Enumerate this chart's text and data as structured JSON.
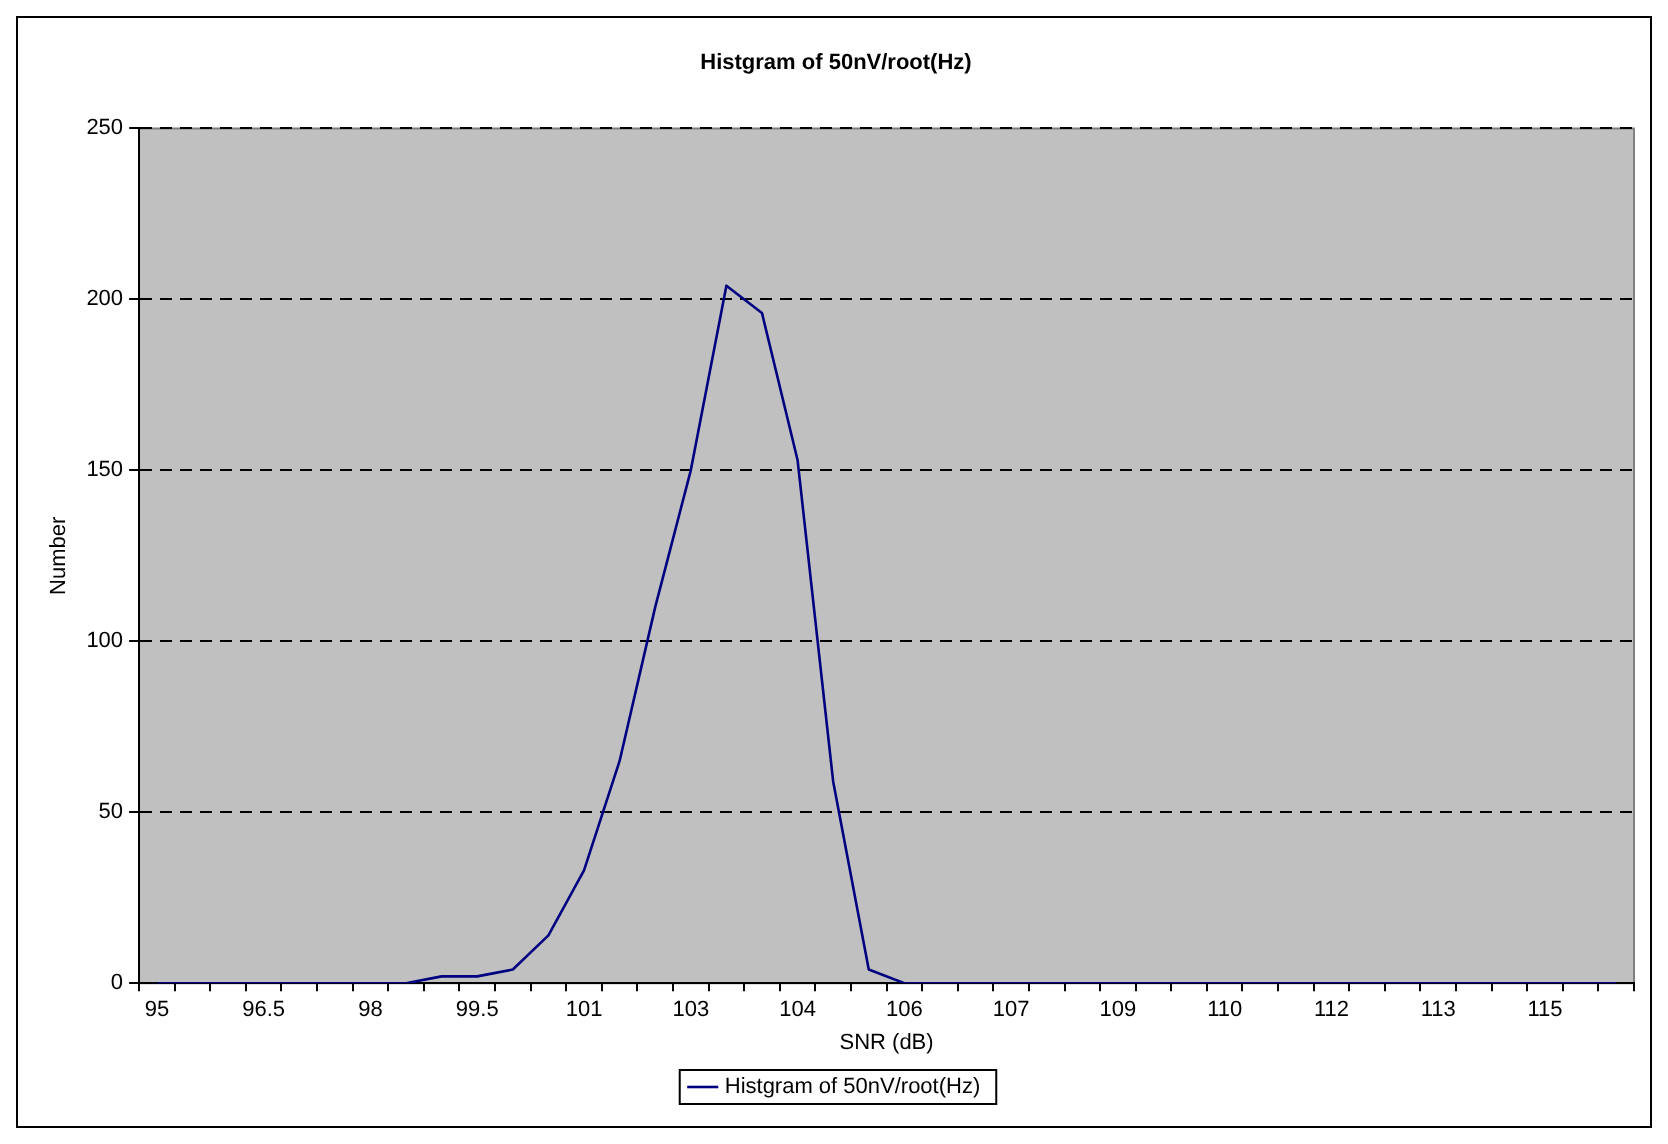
{
  "chart_data": {
    "type": "line",
    "title": "Histgram of 50nV/root(Hz)",
    "xlabel": "SNR (dB)",
    "ylabel": "Number",
    "categories": [
      "95",
      null,
      null,
      "96.5",
      null,
      null,
      "98",
      null,
      null,
      "99.5",
      null,
      null,
      "101",
      null,
      null,
      "103",
      null,
      null,
      "104",
      null,
      null,
      "106",
      null,
      null,
      "107",
      null,
      null,
      "109",
      null,
      null,
      "110",
      null,
      null,
      "112",
      null,
      null,
      "113",
      null,
      null,
      "115",
      null,
      null
    ],
    "series": [
      {
        "name": "Histgram of 50nV/root(Hz)",
        "color": "#000080",
        "values": [
          0,
          0,
          0,
          0,
          0,
          0,
          0,
          0,
          2,
          2,
          4,
          14,
          33,
          65,
          110,
          150,
          204,
          196,
          153,
          59,
          4,
          0,
          0,
          0,
          0,
          0,
          0,
          0,
          0,
          0,
          0,
          0,
          0,
          0,
          0,
          0,
          0,
          0,
          0,
          0,
          0,
          0
        ]
      }
    ],
    "ylim": [
      0,
      250
    ],
    "yticks": [
      0,
      50,
      100,
      150,
      200,
      250
    ],
    "grid": "y",
    "legend": "bottom",
    "marker": "none",
    "line_style": "solid"
  }
}
